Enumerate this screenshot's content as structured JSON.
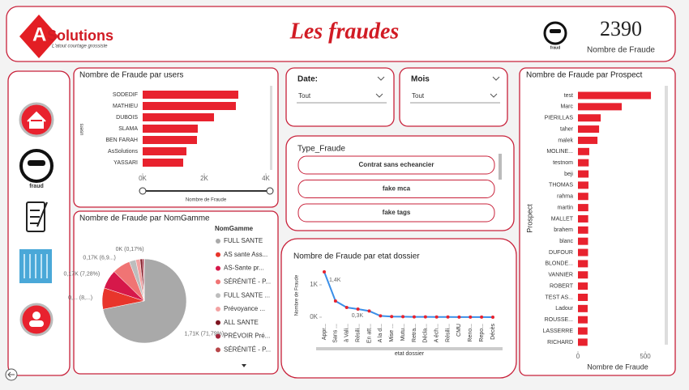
{
  "header": {
    "logo_initial": "A",
    "logo_name": "Solutions",
    "logo_tagline": "L'atout courtage grossiste",
    "title": "Les fraudes",
    "icon_label": "fraud",
    "kpi_value": 2390,
    "kpi_label": "Nombre de Fraude"
  },
  "nav": {
    "icon_label": "fraud"
  },
  "slicers": [
    {
      "title": "Date:",
      "value": "Tout"
    },
    {
      "title": "Mois",
      "value": "Tout"
    }
  ],
  "type_fraude": {
    "title": "Type_Fraude",
    "options": [
      "Contrat sans echeancier",
      "fake mca",
      "fake tags"
    ]
  },
  "chart_data": [
    {
      "type": "hbar",
      "title": "Nombre de Fraude par users",
      "categories": [
        "SODEDIF",
        "MATHIEU",
        "DUBOIS",
        "SLAMA",
        "BEN FARAH",
        "AsSolutions",
        "YASSARI"
      ],
      "values": [
        3105,
        3026,
        2316,
        1789,
        1763,
        1421,
        1316
      ],
      "color": "#e8222e",
      "xlim": [
        0,
        4000
      ],
      "xticks": [
        {
          "value": 0,
          "label": "0K"
        },
        {
          "value": 2000,
          "label": "2K"
        },
        {
          "value": 4000,
          "label": "4K"
        }
      ],
      "xlabel": "Nombre de Fraude",
      "ylabel": "users"
    },
    {
      "type": "pie",
      "title": "Nombre de Fraude par NomGamme",
      "legend_title": "NomGamme",
      "categories": [
        "FULL SANTE",
        "AS sante Ass...",
        "AS-Sante pr...",
        "SÉRÉNITÉ - P...",
        "FULL SANTE ...",
        "Prévoyance ...",
        "ALL SANTE",
        "PRÉVOIR Pré...",
        "SÉRÉNITÉ - P..."
      ],
      "values": [
        1714,
        195,
        174,
        165,
        60,
        40,
        20,
        14,
        4
      ],
      "value_labels": [
        "1,71K (71,79%)",
        "0,... (8,...)",
        "0,17K (7,28%)",
        "0,17K (6,9...)",
        null,
        null,
        null,
        null,
        "0K (0,17%)"
      ],
      "colors": [
        "#a9a9a9",
        "#e8352b",
        "#d6184a",
        "#f07474",
        "#bdbdbd",
        "#f3a2a2",
        "#7d1420",
        "#a3263c",
        "#b8474a"
      ]
    },
    {
      "type": "line",
      "title": "Nombre de Fraude par etat dossier",
      "categories": [
        "Appr...",
        "Sans ...",
        "à Vali...",
        "Résili...",
        "En att...",
        "A la d...",
        "Mise ...",
        "Mutu...",
        "Retra...",
        "Décla...",
        "A éch...",
        "Résili...",
        "CMU",
        "Reno...",
        "Repo...",
        "Décès"
      ],
      "values": [
        1400,
        500,
        300,
        250,
        190,
        40,
        20,
        15,
        10,
        8,
        6,
        5,
        4,
        3,
        2,
        1
      ],
      "value_labels": [
        "1,4K",
        null,
        "0,3K",
        null,
        null,
        null,
        null,
        null,
        null,
        null,
        null,
        null,
        null,
        null,
        null,
        null
      ],
      "color": "#3b8fe8",
      "marker_color": "#e8222e",
      "ylim": [
        0,
        1500
      ],
      "yticks": [
        {
          "value": 0,
          "label": "0K"
        },
        {
          "value": 1000,
          "label": "1K"
        }
      ],
      "xlabel": "etat dossier",
      "ylabel": "Nombre de Fraude"
    },
    {
      "type": "hbar",
      "title": "Nombre de Fraude par Prospect",
      "categories": [
        "test",
        "Marc",
        "PIERILLAS",
        "taher",
        "malek",
        "MOLINE...",
        "testnom",
        "beji",
        "THOMAS",
        "rahma",
        "martin",
        "MALLET",
        "brahem",
        "blanc",
        "DUFOUR",
        "BLONDE...",
        "VANNIER",
        "ROBERT",
        "TEST AS...",
        "Ladour",
        "ROUSSE...",
        "LASSERRE",
        "RICHARD"
      ],
      "values": [
        542,
        325,
        169,
        157,
        145,
        84,
        80,
        79,
        78,
        77,
        77,
        76,
        76,
        75,
        75,
        74,
        74,
        73,
        73,
        72,
        72,
        71,
        71
      ],
      "color": "#e8222e",
      "xlim": [
        0,
        650
      ],
      "xticks": [
        0,
        500
      ],
      "xlabel": "Nombre de Fraude",
      "ylabel": "Prospect"
    }
  ]
}
